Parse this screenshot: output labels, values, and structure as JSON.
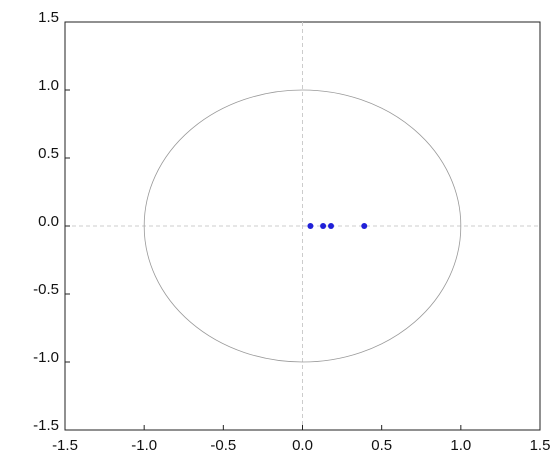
{
  "chart_data": {
    "type": "scatter",
    "series": [
      {
        "color": "#2020d8",
        "x": [
          0.05,
          0.13,
          0.18,
          0.39
        ],
        "values": [
          0,
          0,
          0,
          0
        ]
      }
    ],
    "xlim": [
      -1.5,
      1.5
    ],
    "xticks": [
      -1.5,
      {
        "value": -1,
        "label": "-1.0"
      },
      -0.5,
      {
        "value": 0,
        "label": "0.0"
      },
      0.5,
      {
        "value": 1,
        "label": "1.0"
      },
      1.5
    ],
    "ylim": [
      -1.5,
      1.5
    ],
    "yticks": [
      -1.5,
      {
        "value": -1,
        "label": "-1.0"
      },
      -0.5,
      {
        "value": 0,
        "label": "0.0"
      },
      0.5,
      {
        "value": 1,
        "label": "1.0"
      },
      1.5
    ]
  }
}
